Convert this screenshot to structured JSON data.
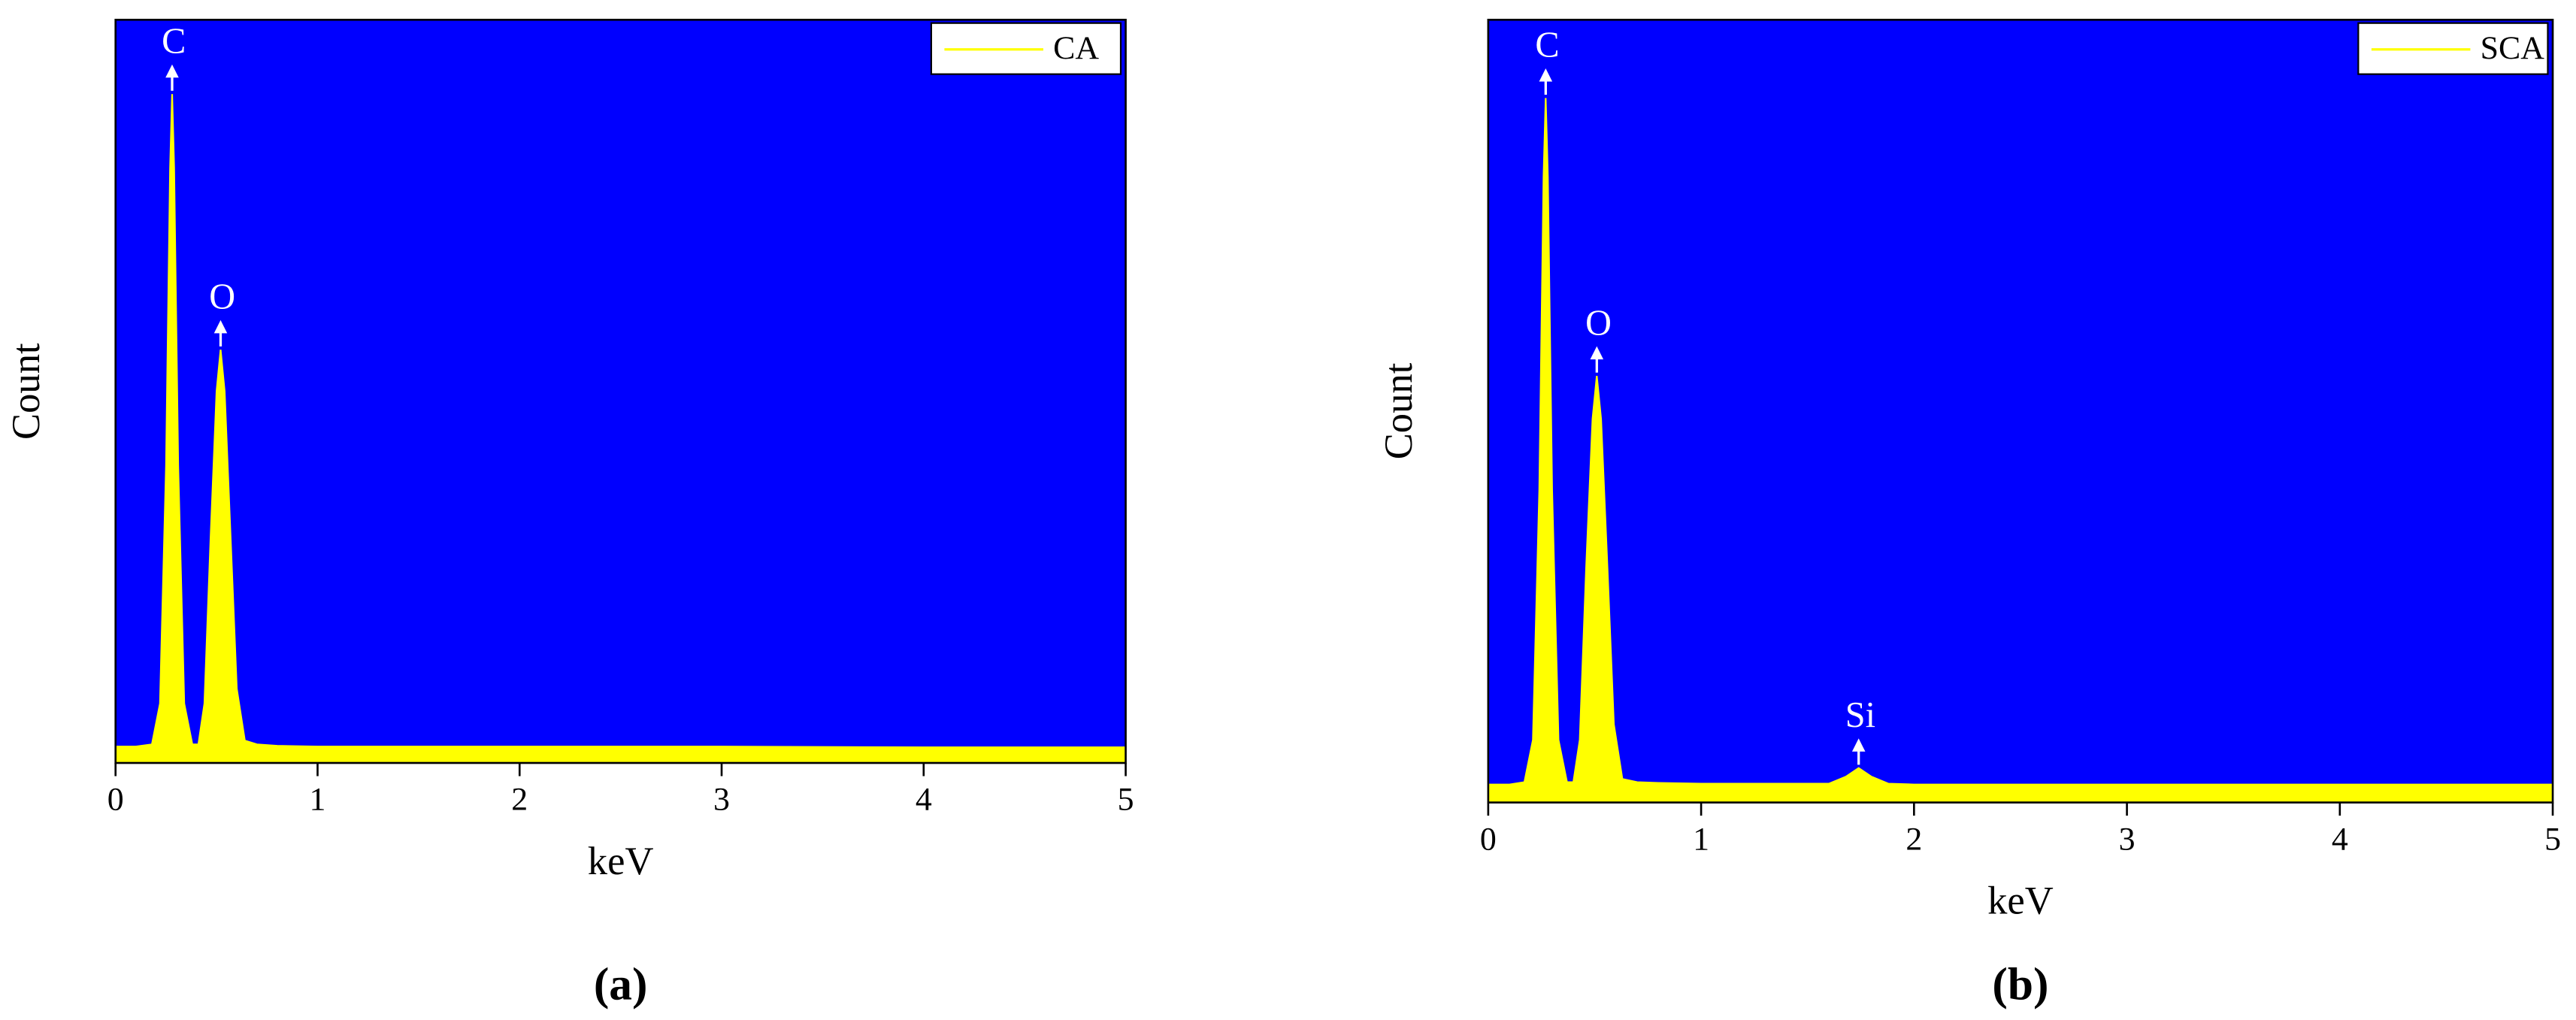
{
  "chart_data": [
    {
      "type": "area",
      "panel_label": "(a)",
      "xlabel": "keV",
      "ylabel": "Count",
      "background": "#0000ff",
      "legend": "upper right",
      "xlim": [
        0,
        5
      ],
      "xticks": [
        0,
        1,
        2,
        3,
        4,
        5
      ],
      "ylim": [
        0,
        100
      ],
      "x": [
        0,
        0.1,
        0.18,
        0.22,
        0.25,
        0.27,
        0.28,
        0.29,
        0.31,
        0.34,
        0.38,
        0.41,
        0.44,
        0.47,
        0.5,
        0.52,
        0.54,
        0.57,
        0.6,
        0.64,
        0.7,
        0.8,
        1,
        2,
        3,
        4,
        5
      ],
      "series": [
        {
          "name": "CA",
          "color": "#ffff00",
          "values": [
            2.2,
            2.2,
            2.5,
            8,
            40,
            80,
            90,
            80,
            40,
            8,
            2.5,
            2.5,
            8,
            30,
            50,
            55.6,
            50,
            30,
            10,
            3,
            2.5,
            2.3,
            2.2,
            2.2,
            2.2,
            2.1,
            2.1
          ]
        }
      ],
      "annotations": [
        {
          "text": "C",
          "x": 0.28,
          "y": 90
        },
        {
          "text": "O",
          "x": 0.52,
          "y": 55.6
        }
      ]
    },
    {
      "type": "area",
      "panel_label": "(b)",
      "xlabel": "keV",
      "ylabel": "Count",
      "background": "#0000ff",
      "legend": "upper right",
      "xlim": [
        0,
        5
      ],
      "xticks": [
        0,
        1,
        2,
        3,
        4,
        5
      ],
      "ylim": [
        0,
        100
      ],
      "x": [
        0,
        0.1,
        0.17,
        0.21,
        0.24,
        0.26,
        0.27,
        0.28,
        0.3,
        0.33,
        0.37,
        0.4,
        0.43,
        0.46,
        0.49,
        0.51,
        0.53,
        0.56,
        0.59,
        0.63,
        0.7,
        0.8,
        1,
        1.6,
        1.68,
        1.74,
        1.8,
        1.88,
        2,
        3,
        4,
        5
      ],
      "series": [
        {
          "name": "SCA",
          "color": "#ffff00",
          "values": [
            2.3,
            2.3,
            2.6,
            8,
            40,
            80,
            90,
            80,
            40,
            8,
            2.6,
            2.6,
            8,
            30,
            49,
            54.5,
            49,
            30,
            10,
            3,
            2.6,
            2.5,
            2.4,
            2.4,
            3.3,
            4.4,
            3.3,
            2.4,
            2.3,
            2.3,
            2.3,
            2.3
          ]
        }
      ],
      "annotations": [
        {
          "text": "C",
          "x": 0.27,
          "y": 90
        },
        {
          "text": "O",
          "x": 0.51,
          "y": 54.5
        },
        {
          "text": "Si",
          "x": 1.74,
          "y": 4.4
        }
      ]
    }
  ]
}
